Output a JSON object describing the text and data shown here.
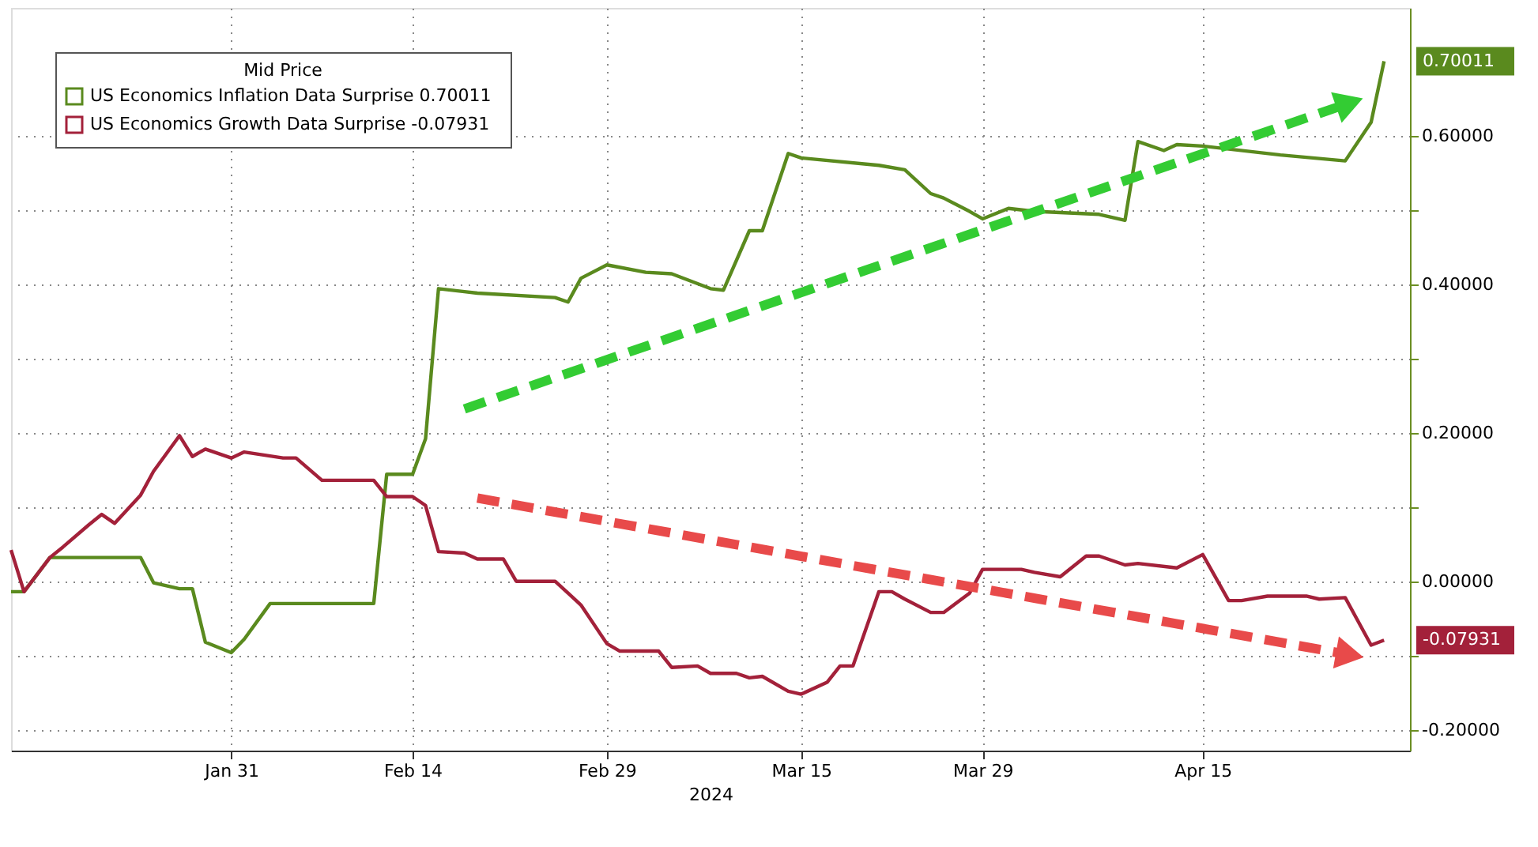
{
  "chart_data": {
    "type": "line",
    "xlabel": "2024",
    "legend_title": "Mid Price",
    "legend": "top left",
    "grid": true,
    "xlim": [
      "2024-01-14",
      "2024-05-01"
    ],
    "xticks": [
      {
        "value": "2024-01-31",
        "label": "Jan 31"
      },
      {
        "value": "2024-02-14",
        "label": "Feb 14"
      },
      {
        "value": "2024-02-29",
        "label": "Feb 29"
      },
      {
        "value": "2024-03-15",
        "label": "Mar 15"
      },
      {
        "value": "2024-03-29",
        "label": "Mar 29"
      },
      {
        "value": "2024-04-15",
        "label": "Apr 15"
      }
    ],
    "ylim": [
      -0.228,
      0.772
    ],
    "yticks": [
      {
        "value": -0.2,
        "label": "-0.20000"
      },
      {
        "value": -0.1,
        "label": null
      },
      {
        "value": 0,
        "label": "0.00000"
      },
      {
        "value": 0.1,
        "label": null
      },
      {
        "value": 0.2,
        "label": "0.20000"
      },
      {
        "value": 0.3,
        "label": null
      },
      {
        "value": 0.4,
        "label": "0.40000"
      },
      {
        "value": 0.5,
        "label": null
      },
      {
        "value": 0.6,
        "label": "0.60000"
      }
    ],
    "series": [
      {
        "name": "US Economics Inflation Data Surprise 0.70011",
        "color": "#5a8a1e",
        "x": [
          "2024-01-14",
          "2024-01-15",
          "2024-01-17",
          "2024-01-24",
          "2024-01-25",
          "2024-01-27",
          "2024-01-28",
          "2024-01-29",
          "2024-01-31",
          "2024-02-01",
          "2024-02-03",
          "2024-02-11",
          "2024-02-12",
          "2024-02-14",
          "2024-02-15",
          "2024-02-16",
          "2024-02-18",
          "2024-02-19",
          "2024-02-25",
          "2024-02-26",
          "2024-02-27",
          "2024-02-29",
          "2024-03-03",
          "2024-03-05",
          "2024-03-08",
          "2024-03-09",
          "2024-03-11",
          "2024-03-12",
          "2024-03-14",
          "2024-03-15",
          "2024-03-21",
          "2024-03-23",
          "2024-03-25",
          "2024-03-26",
          "2024-03-28",
          "2024-03-29",
          "2024-03-31",
          "2024-04-02",
          "2024-04-07",
          "2024-04-09",
          "2024-04-10",
          "2024-04-12",
          "2024-04-13",
          "2024-04-15",
          "2024-04-21",
          "2024-04-26",
          "2024-04-28",
          "2024-04-29"
        ],
        "values": [
          -0.014,
          -0.014,
          0.032,
          0.032,
          -0.002,
          -0.01,
          -0.01,
          -0.082,
          -0.096,
          -0.078,
          -0.03,
          -0.03,
          0.144,
          0.144,
          0.192,
          0.394,
          0.39,
          0.388,
          0.382,
          0.376,
          0.408,
          0.426,
          0.416,
          0.414,
          0.394,
          0.392,
          0.472,
          0.472,
          0.576,
          0.57,
          0.56,
          0.554,
          0.522,
          0.516,
          0.498,
          0.488,
          0.502,
          0.498,
          0.494,
          0.486,
          0.592,
          0.58,
          0.588,
          0.586,
          0.574,
          0.566,
          0.618,
          0.70011
        ]
      },
      {
        "name": "US Economics Growth Data Surprise   -0.07931",
        "color": "#a3213a",
        "x": [
          "2024-01-14",
          "2024-01-15",
          "2024-01-17",
          "2024-01-18",
          "2024-01-20",
          "2024-01-21",
          "2024-01-22",
          "2024-01-24",
          "2024-01-25",
          "2024-01-27",
          "2024-01-28",
          "2024-01-29",
          "2024-01-31",
          "2024-02-01",
          "2024-02-04",
          "2024-02-05",
          "2024-02-07",
          "2024-02-08",
          "2024-02-11",
          "2024-02-12",
          "2024-02-14",
          "2024-02-15",
          "2024-02-16",
          "2024-02-18",
          "2024-02-19",
          "2024-02-21",
          "2024-02-22",
          "2024-02-25",
          "2024-02-26",
          "2024-02-27",
          "2024-02-29",
          "2024-03-01",
          "2024-03-04",
          "2024-03-05",
          "2024-03-07",
          "2024-03-08",
          "2024-03-10",
          "2024-03-11",
          "2024-03-12",
          "2024-03-14",
          "2024-03-15",
          "2024-03-17",
          "2024-03-18",
          "2024-03-19",
          "2024-03-21",
          "2024-03-22",
          "2024-03-23",
          "2024-03-25",
          "2024-03-26",
          "2024-03-28",
          "2024-03-29",
          "2024-04-01",
          "2024-04-02",
          "2024-04-04",
          "2024-04-06",
          "2024-04-07",
          "2024-04-09",
          "2024-04-10",
          "2024-04-13",
          "2024-04-15",
          "2024-04-17",
          "2024-04-18",
          "2024-04-20",
          "2024-04-23",
          "2024-04-24",
          "2024-04-26",
          "2024-04-28",
          "2024-04-29"
        ],
        "values": [
          0.042,
          -0.014,
          0.032,
          0.046,
          0.076,
          0.09,
          0.078,
          0.116,
          0.148,
          0.196,
          0.168,
          0.178,
          0.166,
          0.174,
          0.166,
          0.166,
          0.136,
          0.136,
          0.136,
          0.114,
          0.114,
          0.102,
          0.04,
          0.038,
          0.03,
          0.03,
          0.0,
          0.0,
          -0.016,
          -0.032,
          -0.084,
          -0.094,
          -0.094,
          -0.116,
          -0.114,
          -0.124,
          -0.124,
          -0.13,
          -0.128,
          -0.148,
          -0.152,
          -0.136,
          -0.114,
          -0.114,
          -0.014,
          -0.014,
          -0.024,
          -0.042,
          -0.042,
          -0.016,
          0.016,
          0.016,
          0.012,
          0.006,
          0.034,
          0.034,
          0.022,
          0.024,
          0.018,
          0.036,
          -0.026,
          -0.026,
          -0.02,
          -0.02,
          -0.024,
          -0.022,
          -0.086,
          -0.07931
        ]
      },
      {
        "type": "line",
        "color": "#33cc33",
        "line_style": "dashed",
        "x": [
          "2024-02-18",
          "2024-04-26"
        ],
        "values": [
          0.232,
          0.642
        ]
      },
      {
        "type": "line",
        "color": "#e84a4a",
        "line_style": "dashed",
        "x": [
          "2024-02-19",
          "2024-04-26"
        ],
        "values": [
          0.112,
          -0.098
        ]
      }
    ],
    "annotations": [
      {
        "text": "0.70011",
        "x": "2024-04-29",
        "y": 0.70011
      },
      {
        "text": "-0.07931",
        "x": "2024-04-29",
        "y": -0.07931
      }
    ]
  }
}
